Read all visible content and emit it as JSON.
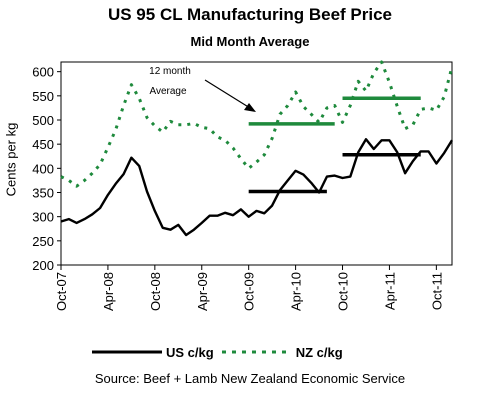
{
  "chart_data": {
    "type": "line",
    "title": "US 95 CL Manufacturing Beef Price",
    "subtitle": "Mid Month Average",
    "ylabel": "Cents per kg",
    "xlabel": "",
    "ylim": [
      200,
      620
    ],
    "yticks": [
      200,
      250,
      300,
      350,
      400,
      450,
      500,
      550,
      600
    ],
    "xlim": [
      "2007-10",
      "2011-12"
    ],
    "xticks": [
      "Oct-07",
      "Apr-08",
      "Oct-08",
      "Apr-09",
      "Oct-09",
      "Apr-10",
      "Oct-10",
      "Apr-11",
      "Oct-11"
    ],
    "x": [
      "2007-10",
      "2007-11",
      "2007-12",
      "2008-01",
      "2008-02",
      "2008-03",
      "2008-04",
      "2008-05",
      "2008-06",
      "2008-07",
      "2008-08",
      "2008-09",
      "2008-10",
      "2008-11",
      "2008-12",
      "2009-01",
      "2009-02",
      "2009-03",
      "2009-04",
      "2009-05",
      "2009-06",
      "2009-07",
      "2009-08",
      "2009-09",
      "2009-10",
      "2009-11",
      "2009-12",
      "2010-01",
      "2010-02",
      "2010-03",
      "2010-04",
      "2010-05",
      "2010-06",
      "2010-07",
      "2010-08",
      "2010-09",
      "2010-10",
      "2010-11",
      "2010-12",
      "2011-01",
      "2011-02",
      "2011-03",
      "2011-04",
      "2011-05",
      "2011-06",
      "2011-07",
      "2011-08",
      "2011-09",
      "2011-10",
      "2011-11",
      "2011-12"
    ],
    "series": [
      {
        "name": "US c/kg",
        "color": "#000000",
        "style": "solid",
        "values": [
          290,
          295,
          287,
          295,
          305,
          318,
          345,
          368,
          388,
          422,
          405,
          352,
          312,
          277,
          273,
          283,
          262,
          273,
          287,
          302,
          302,
          308,
          303,
          315,
          300,
          312,
          307,
          323,
          355,
          375,
          395,
          387,
          370,
          350,
          383,
          385,
          380,
          383,
          433,
          460,
          440,
          458,
          458,
          433,
          390,
          415,
          435,
          435,
          410,
          432,
          458
        ]
      },
      {
        "name": "NZ c/kg",
        "color": "#1e8a3c",
        "style": "dotted",
        "values": [
          383,
          375,
          363,
          375,
          390,
          408,
          443,
          480,
          530,
          573,
          545,
          505,
          488,
          475,
          497,
          490,
          490,
          493,
          485,
          482,
          465,
          458,
          442,
          420,
          400,
          413,
          428,
          462,
          512,
          530,
          558,
          528,
          512,
          495,
          525,
          530,
          495,
          530,
          580,
          560,
          597,
          620,
          578,
          528,
          482,
          490,
          522,
          525,
          520,
          548,
          610
        ]
      }
    ],
    "averages": [
      {
        "series": "NZ c/kg",
        "from": "2009-10",
        "to": "2010-09",
        "value": 492
      },
      {
        "series": "NZ c/kg",
        "from": "2010-10",
        "to": "2011-08",
        "value": 545
      },
      {
        "series": "US c/kg",
        "from": "2009-10",
        "to": "2010-08",
        "value": 352
      },
      {
        "series": "US c/kg",
        "from": "2010-10",
        "to": "2011-08",
        "value": 428
      }
    ],
    "annotation": {
      "line1": "12 month",
      "line2": "Average"
    },
    "legend": "bottom",
    "source": "Source:  Beef + Lamb New Zealand Economic Service"
  }
}
